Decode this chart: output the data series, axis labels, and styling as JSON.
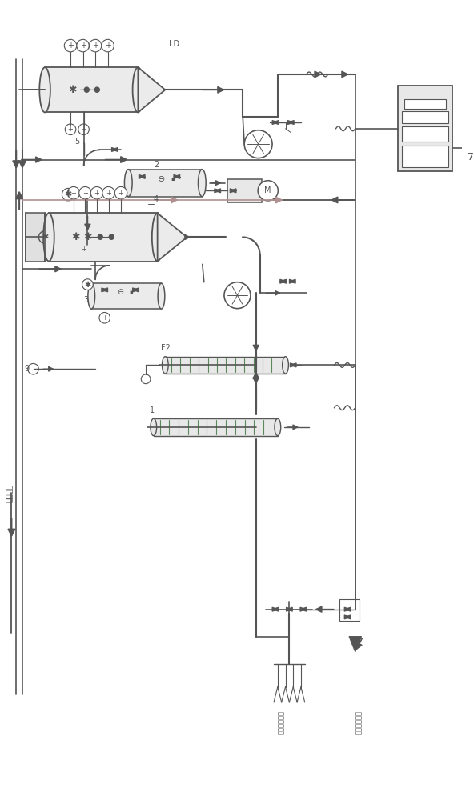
{
  "bg_color": "#ffffff",
  "lc": "#555555",
  "lc_dark": "#333333",
  "pink": "#c8a0a0",
  "green_tube": "#5a8a5a",
  "gray_eq": "#d8d8d8",
  "fig_width": 5.92,
  "fig_height": 10.0,
  "label_steam": "生蒸汽来",
  "label_drain1": "稀释放水排管",
  "label_drain2": "稀释放水排管",
  "label_ld": "LD",
  "label_7": "7",
  "label_4": "4",
  "label_5": "5",
  "label_3": "3",
  "label_F2": "F2",
  "label_1": "1",
  "label_9": "9"
}
